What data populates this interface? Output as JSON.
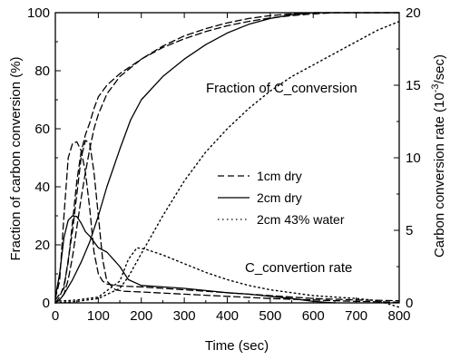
{
  "chart_data": {
    "type": "line",
    "xlabel": "Time (sec)",
    "ylabel_left": "Fraction of carbon conversion (%)",
    "ylabel_right": "Carbon conversion rate (10",
    "ylabel_right_exp": "-3",
    "ylabel_right_unit": "/sec)",
    "xlim": [
      0,
      800
    ],
    "ylim_left": [
      0,
      100
    ],
    "ylim_right": [
      0,
      20
    ],
    "x_ticks": [
      0,
      100,
      200,
      300,
      400,
      500,
      600,
      700,
      800
    ],
    "y_left_ticks": [
      0,
      20,
      40,
      60,
      80,
      100
    ],
    "y_right_ticks": [
      0,
      5,
      10,
      15,
      20
    ],
    "grid": false,
    "legend_placement": "center-right",
    "annotations": [
      {
        "text": "Fraction of C_conversion"
      },
      {
        "text": "C_convertion rate"
      }
    ],
    "legend": [
      {
        "label": "1cm dry",
        "style": "dashed"
      },
      {
        "label": "2cm dry",
        "style": "solid"
      },
      {
        "label": "2cm 43% water",
        "style": "dotted"
      }
    ],
    "series": [
      {
        "name": "1cm dry",
        "style": "dashed",
        "axis": "left",
        "kind": "fraction",
        "x": [
          0,
          10,
          20,
          30,
          40,
          50,
          60,
          70,
          80,
          90,
          100,
          120,
          150,
          200,
          250,
          300,
          350,
          400,
          450,
          500,
          550,
          600,
          650,
          700,
          750,
          800
        ],
        "y": [
          0,
          2,
          6,
          14,
          28,
          42,
          52,
          58,
          62,
          67,
          71,
          75,
          79,
          84,
          88,
          91,
          93.5,
          95.5,
          97,
          98.2,
          99,
          99.6,
          100,
          100,
          100,
          100
        ]
      },
      {
        "name": "1cm dry",
        "style": "dashed",
        "axis": "left",
        "kind": "fraction",
        "x": [
          0,
          10,
          20,
          30,
          40,
          50,
          60,
          70,
          80,
          90,
          100,
          120,
          150,
          200,
          250,
          300,
          350,
          400,
          450,
          500,
          550,
          600,
          650,
          700,
          750,
          800
        ],
        "y": [
          0,
          1,
          3,
          8,
          16,
          26,
          36,
          45,
          53,
          60,
          65,
          72,
          78,
          84,
          88.5,
          92,
          94.5,
          96.5,
          98,
          99,
          99.6,
          100,
          100,
          100,
          100,
          100
        ]
      },
      {
        "name": "2cm dry",
        "style": "solid",
        "axis": "left",
        "kind": "fraction",
        "x": [
          0,
          10,
          20,
          40,
          60,
          80,
          100,
          120,
          150,
          175,
          200,
          250,
          300,
          350,
          400,
          450,
          500,
          550,
          600,
          650,
          700,
          750,
          800
        ],
        "y": [
          0,
          1,
          3,
          8,
          14,
          21,
          30,
          40,
          53,
          63,
          70,
          78,
          84,
          89,
          93,
          96,
          98,
          99.3,
          100,
          100,
          100,
          100,
          100
        ]
      },
      {
        "name": "2cm 43% water",
        "style": "dotted",
        "axis": "left",
        "kind": "fraction",
        "x": [
          0,
          50,
          100,
          150,
          170,
          200,
          250,
          300,
          350,
          400,
          450,
          500,
          550,
          600,
          650,
          700,
          750,
          800
        ],
        "y": [
          0,
          0.5,
          1.5,
          5,
          9,
          17,
          30,
          42,
          52,
          60,
          67,
          73,
          78,
          82,
          86,
          90,
          94,
          97
        ]
      },
      {
        "name": "1cm dry",
        "style": "dashed",
        "axis": "right",
        "kind": "rate",
        "x": [
          0,
          10,
          20,
          30,
          40,
          50,
          60,
          70,
          80,
          90,
          100,
          110,
          120,
          140,
          160,
          200,
          250,
          300,
          400,
          500,
          600,
          700,
          800
        ],
        "y": [
          0.3,
          1.5,
          6,
          10,
          11,
          11.1,
          10.5,
          9,
          6.5,
          3.5,
          2,
          1.5,
          1.3,
          1.2,
          1.15,
          1.1,
          1.0,
          0.9,
          0.7,
          0.5,
          0.3,
          0.2,
          0.15
        ]
      },
      {
        "name": "1cm dry",
        "style": "dashed",
        "axis": "right",
        "kind": "rate",
        "x": [
          0,
          20,
          40,
          60,
          70,
          80,
          90,
          100,
          110,
          120,
          140,
          160,
          200,
          300,
          400,
          500,
          600,
          700,
          800
        ],
        "y": [
          0.2,
          1,
          5,
          10,
          11.2,
          11,
          9,
          6,
          3,
          1.5,
          0.9,
          0.8,
          0.75,
          0.6,
          0.45,
          0.3,
          0.2,
          0.1,
          0.05
        ]
      },
      {
        "name": "2cm dry",
        "style": "solid",
        "axis": "right",
        "kind": "rate",
        "x": [
          0,
          10,
          20,
          30,
          40,
          50,
          60,
          70,
          80,
          100,
          120,
          150,
          170,
          200,
          250,
          300,
          350,
          400,
          450,
          500,
          550,
          600,
          650
        ],
        "y": [
          0.4,
          2,
          4.5,
          5.7,
          6.0,
          5.95,
          5.5,
          4.9,
          4.6,
          3.8,
          3.5,
          2.5,
          1.6,
          1.2,
          1.1,
          1.0,
          0.85,
          0.7,
          0.6,
          0.45,
          0.3,
          0.1,
          0
        ]
      },
      {
        "name": "2cm 43% water",
        "style": "dotted",
        "axis": "right",
        "kind": "rate",
        "x": [
          0,
          50,
          100,
          150,
          170,
          190,
          210,
          250,
          300,
          350,
          400,
          450,
          500,
          550,
          600,
          650,
          700,
          750,
          800
        ],
        "y": [
          0.1,
          0.2,
          0.4,
          1.5,
          3.0,
          3.8,
          3.7,
          3.3,
          2.7,
          2.1,
          1.6,
          1.2,
          0.9,
          0.7,
          0.5,
          0.4,
          0.3,
          0.15,
          -0.3
        ]
      }
    ]
  }
}
